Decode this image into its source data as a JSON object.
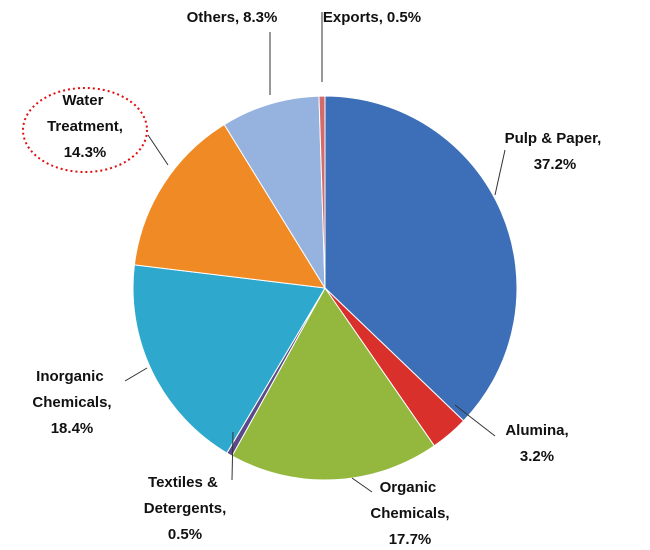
{
  "chart_data": {
    "type": "pie",
    "categories": [
      "Pulp & Paper,",
      "Alumina,",
      "Organic Chemicals,",
      "Textiles & Detergents,",
      "Inorganic Chemicals,",
      "Water Treatment,",
      "Others,",
      "Exports,"
    ],
    "values": [
      37.2,
      3.2,
      17.7,
      0.5,
      18.4,
      14.3,
      8.3,
      0.5
    ],
    "value_labels": [
      "37.2%",
      "3.2%",
      "17.7%",
      "0.5%",
      "18.4%",
      "14.3%",
      "8.3%",
      "0.5%"
    ],
    "colors": [
      "#3d6fb8",
      "#d9302c",
      "#93b83d",
      "#5a4a8a",
      "#2ea8cc",
      "#f08a24",
      "#95b3de",
      "#d46a6a"
    ]
  }
}
